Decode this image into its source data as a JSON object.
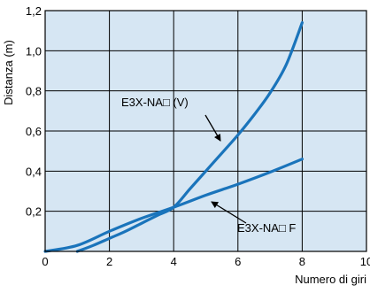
{
  "chart_data": {
    "type": "line",
    "title": "",
    "xlabel": "Numero di giri",
    "ylabel": "Distanza (m)",
    "xlim": [
      0,
      10
    ],
    "ylim": [
      0,
      1.2
    ],
    "x_ticks": [
      0,
      2,
      4,
      6,
      8,
      10
    ],
    "y_ticks": [
      0.2,
      0.4,
      0.6,
      0.8,
      1.0,
      1.2
    ],
    "x_tick_labels": [
      "0",
      "2",
      "4",
      "6",
      "8",
      "10"
    ],
    "y_tick_labels": [
      "0,2",
      "0,4",
      "0,6",
      "0,8",
      "1,0",
      "1,2"
    ],
    "grid": true,
    "plot_background": "#d6e6f3",
    "line_color": "#1a74bb",
    "series": [
      {
        "name": "E3X-NA□ (V)",
        "x": [
          1.0,
          1.5,
          2.0,
          2.5,
          3.0,
          3.5,
          4.0,
          4.5,
          5.0,
          5.5,
          6.0,
          6.5,
          7.0,
          7.5,
          8.0
        ],
        "y": [
          0.0,
          0.03,
          0.065,
          0.1,
          0.14,
          0.18,
          0.22,
          0.31,
          0.4,
          0.49,
          0.58,
          0.68,
          0.79,
          0.93,
          1.14
        ]
      },
      {
        "name": "E3X-NA□ F",
        "x": [
          0.0,
          1.0,
          2.0,
          3.0,
          4.0,
          5.0,
          6.0,
          7.0,
          8.0
        ],
        "y": [
          0.0,
          0.03,
          0.1,
          0.165,
          0.22,
          0.28,
          0.335,
          0.395,
          0.46
        ]
      }
    ],
    "annotations": [
      {
        "text": "E3X-NA□ (V)",
        "series": 0,
        "arrow_to": [
          6.0,
          0.6
        ]
      },
      {
        "text": "E3X-NA□ F",
        "series": 1,
        "arrow_to": [
          5.0,
          0.27
        ]
      }
    ]
  }
}
